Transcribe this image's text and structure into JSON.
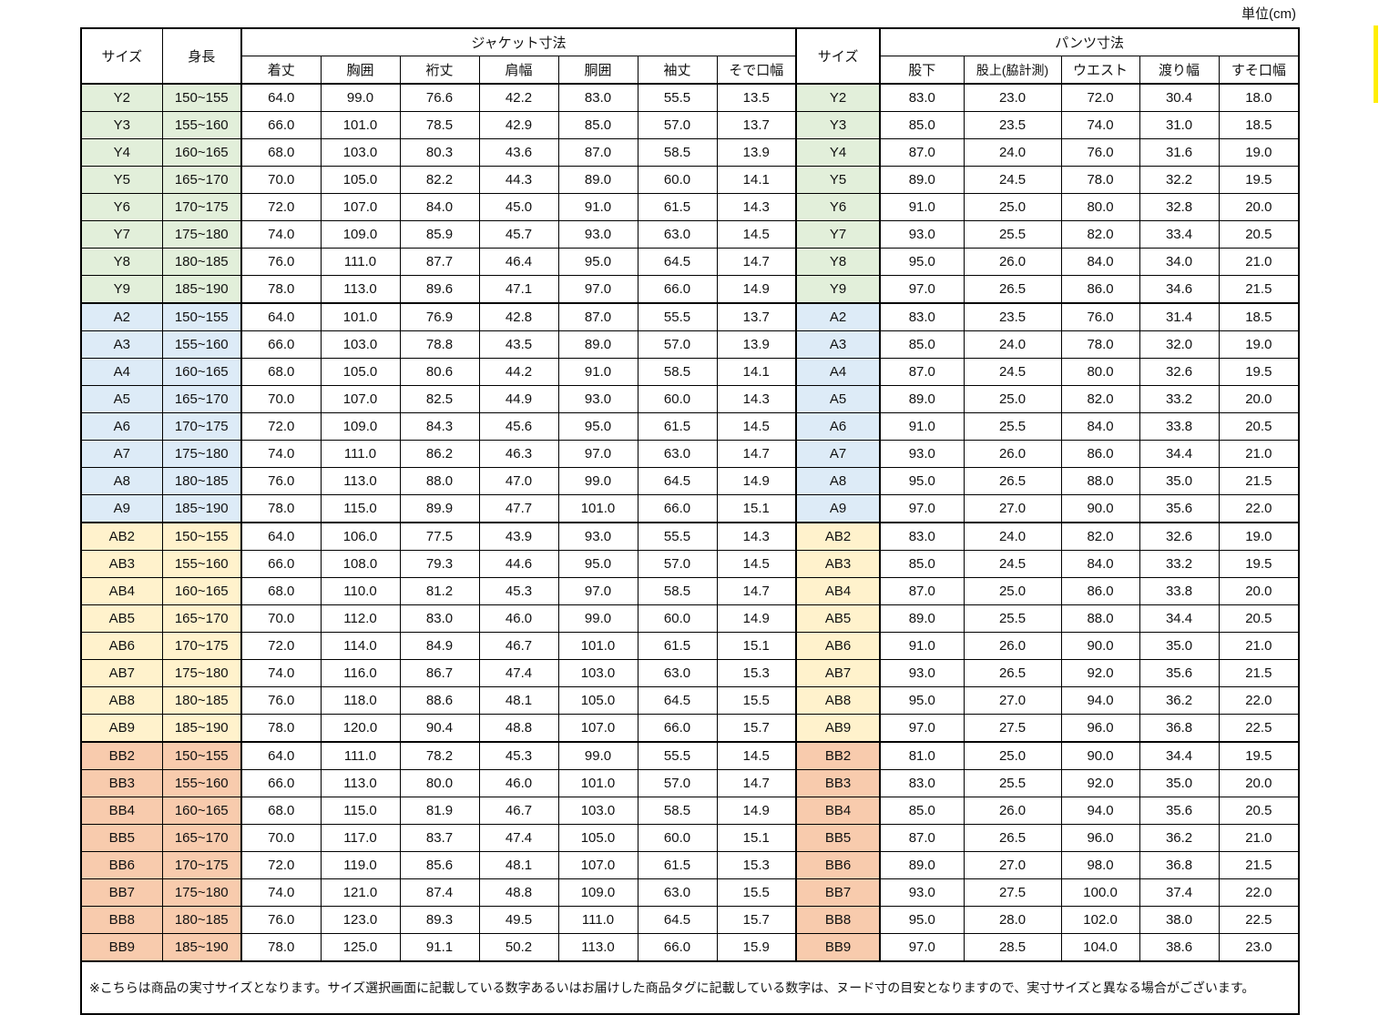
{
  "unit_label": "単位(cm)",
  "decorations": {
    "right_edge_strip_color": "#ffee00"
  },
  "table": {
    "headers": {
      "size": "サイズ",
      "height": "身長",
      "jacket_group": "ジャケット寸法",
      "jacket_columns": [
        "着丈",
        "胸囲",
        "裄丈",
        "肩幅",
        "胴囲",
        "袖丈",
        "そで口幅"
      ],
      "pants_group": "パンツ寸法",
      "pants_columns": [
        "股下",
        "股上(脇計測)",
        "ウエスト",
        "渡り幅",
        "すそ口幅"
      ]
    },
    "groups": [
      {
        "name": "Y",
        "row_color": "#e2efda",
        "rows": [
          {
            "size": "Y2",
            "height": "150~155",
            "jacket": [
              "64.0",
              "99.0",
              "76.6",
              "42.2",
              "83.0",
              "55.5",
              "13.5"
            ],
            "pants": [
              "83.0",
              "23.0",
              "72.0",
              "30.4",
              "18.0"
            ]
          },
          {
            "size": "Y3",
            "height": "155~160",
            "jacket": [
              "66.0",
              "101.0",
              "78.5",
              "42.9",
              "85.0",
              "57.0",
              "13.7"
            ],
            "pants": [
              "85.0",
              "23.5",
              "74.0",
              "31.0",
              "18.5"
            ]
          },
          {
            "size": "Y4",
            "height": "160~165",
            "jacket": [
              "68.0",
              "103.0",
              "80.3",
              "43.6",
              "87.0",
              "58.5",
              "13.9"
            ],
            "pants": [
              "87.0",
              "24.0",
              "76.0",
              "31.6",
              "19.0"
            ]
          },
          {
            "size": "Y5",
            "height": "165~170",
            "jacket": [
              "70.0",
              "105.0",
              "82.2",
              "44.3",
              "89.0",
              "60.0",
              "14.1"
            ],
            "pants": [
              "89.0",
              "24.5",
              "78.0",
              "32.2",
              "19.5"
            ]
          },
          {
            "size": "Y6",
            "height": "170~175",
            "jacket": [
              "72.0",
              "107.0",
              "84.0",
              "45.0",
              "91.0",
              "61.5",
              "14.3"
            ],
            "pants": [
              "91.0",
              "25.0",
              "80.0",
              "32.8",
              "20.0"
            ]
          },
          {
            "size": "Y7",
            "height": "175~180",
            "jacket": [
              "74.0",
              "109.0",
              "85.9",
              "45.7",
              "93.0",
              "63.0",
              "14.5"
            ],
            "pants": [
              "93.0",
              "25.5",
              "82.0",
              "33.4",
              "20.5"
            ]
          },
          {
            "size": "Y8",
            "height": "180~185",
            "jacket": [
              "76.0",
              "111.0",
              "87.7",
              "46.4",
              "95.0",
              "64.5",
              "14.7"
            ],
            "pants": [
              "95.0",
              "26.0",
              "84.0",
              "34.0",
              "21.0"
            ]
          },
          {
            "size": "Y9",
            "height": "185~190",
            "jacket": [
              "78.0",
              "113.0",
              "89.6",
              "47.1",
              "97.0",
              "66.0",
              "14.9"
            ],
            "pants": [
              "97.0",
              "26.5",
              "86.0",
              "34.6",
              "21.5"
            ]
          }
        ]
      },
      {
        "name": "A",
        "row_color": "#ddebf7",
        "rows": [
          {
            "size": "A2",
            "height": "150~155",
            "jacket": [
              "64.0",
              "101.0",
              "76.9",
              "42.8",
              "87.0",
              "55.5",
              "13.7"
            ],
            "pants": [
              "83.0",
              "23.5",
              "76.0",
              "31.4",
              "18.5"
            ]
          },
          {
            "size": "A3",
            "height": "155~160",
            "jacket": [
              "66.0",
              "103.0",
              "78.8",
              "43.5",
              "89.0",
              "57.0",
              "13.9"
            ],
            "pants": [
              "85.0",
              "24.0",
              "78.0",
              "32.0",
              "19.0"
            ]
          },
          {
            "size": "A4",
            "height": "160~165",
            "jacket": [
              "68.0",
              "105.0",
              "80.6",
              "44.2",
              "91.0",
              "58.5",
              "14.1"
            ],
            "pants": [
              "87.0",
              "24.5",
              "80.0",
              "32.6",
              "19.5"
            ]
          },
          {
            "size": "A5",
            "height": "165~170",
            "jacket": [
              "70.0",
              "107.0",
              "82.5",
              "44.9",
              "93.0",
              "60.0",
              "14.3"
            ],
            "pants": [
              "89.0",
              "25.0",
              "82.0",
              "33.2",
              "20.0"
            ]
          },
          {
            "size": "A6",
            "height": "170~175",
            "jacket": [
              "72.0",
              "109.0",
              "84.3",
              "45.6",
              "95.0",
              "61.5",
              "14.5"
            ],
            "pants": [
              "91.0",
              "25.5",
              "84.0",
              "33.8",
              "20.5"
            ]
          },
          {
            "size": "A7",
            "height": "175~180",
            "jacket": [
              "74.0",
              "111.0",
              "86.2",
              "46.3",
              "97.0",
              "63.0",
              "14.7"
            ],
            "pants": [
              "93.0",
              "26.0",
              "86.0",
              "34.4",
              "21.0"
            ]
          },
          {
            "size": "A8",
            "height": "180~185",
            "jacket": [
              "76.0",
              "113.0",
              "88.0",
              "47.0",
              "99.0",
              "64.5",
              "14.9"
            ],
            "pants": [
              "95.0",
              "26.5",
              "88.0",
              "35.0",
              "21.5"
            ]
          },
          {
            "size": "A9",
            "height": "185~190",
            "jacket": [
              "78.0",
              "115.0",
              "89.9",
              "47.7",
              "101.0",
              "66.0",
              "15.1"
            ],
            "pants": [
              "97.0",
              "27.0",
              "90.0",
              "35.6",
              "22.0"
            ]
          }
        ]
      },
      {
        "name": "AB",
        "row_color": "#fff2cc",
        "rows": [
          {
            "size": "AB2",
            "height": "150~155",
            "jacket": [
              "64.0",
              "106.0",
              "77.5",
              "43.9",
              "93.0",
              "55.5",
              "14.3"
            ],
            "pants": [
              "83.0",
              "24.0",
              "82.0",
              "32.6",
              "19.0"
            ]
          },
          {
            "size": "AB3",
            "height": "155~160",
            "jacket": [
              "66.0",
              "108.0",
              "79.3",
              "44.6",
              "95.0",
              "57.0",
              "14.5"
            ],
            "pants": [
              "85.0",
              "24.5",
              "84.0",
              "33.2",
              "19.5"
            ]
          },
          {
            "size": "AB4",
            "height": "160~165",
            "jacket": [
              "68.0",
              "110.0",
              "81.2",
              "45.3",
              "97.0",
              "58.5",
              "14.7"
            ],
            "pants": [
              "87.0",
              "25.0",
              "86.0",
              "33.8",
              "20.0"
            ]
          },
          {
            "size": "AB5",
            "height": "165~170",
            "jacket": [
              "70.0",
              "112.0",
              "83.0",
              "46.0",
              "99.0",
              "60.0",
              "14.9"
            ],
            "pants": [
              "89.0",
              "25.5",
              "88.0",
              "34.4",
              "20.5"
            ]
          },
          {
            "size": "AB6",
            "height": "170~175",
            "jacket": [
              "72.0",
              "114.0",
              "84.9",
              "46.7",
              "101.0",
              "61.5",
              "15.1"
            ],
            "pants": [
              "91.0",
              "26.0",
              "90.0",
              "35.0",
              "21.0"
            ]
          },
          {
            "size": "AB7",
            "height": "175~180",
            "jacket": [
              "74.0",
              "116.0",
              "86.7",
              "47.4",
              "103.0",
              "63.0",
              "15.3"
            ],
            "pants": [
              "93.0",
              "26.5",
              "92.0",
              "35.6",
              "21.5"
            ]
          },
          {
            "size": "AB8",
            "height": "180~185",
            "jacket": [
              "76.0",
              "118.0",
              "88.6",
              "48.1",
              "105.0",
              "64.5",
              "15.5"
            ],
            "pants": [
              "95.0",
              "27.0",
              "94.0",
              "36.2",
              "22.0"
            ]
          },
          {
            "size": "AB9",
            "height": "185~190",
            "jacket": [
              "78.0",
              "120.0",
              "90.4",
              "48.8",
              "107.0",
              "66.0",
              "15.7"
            ],
            "pants": [
              "97.0",
              "27.5",
              "96.0",
              "36.8",
              "22.5"
            ]
          }
        ]
      },
      {
        "name": "BB",
        "row_color": "#f8cbad",
        "rows": [
          {
            "size": "BB2",
            "height": "150~155",
            "jacket": [
              "64.0",
              "111.0",
              "78.2",
              "45.3",
              "99.0",
              "55.5",
              "14.5"
            ],
            "pants": [
              "81.0",
              "25.0",
              "90.0",
              "34.4",
              "19.5"
            ]
          },
          {
            "size": "BB3",
            "height": "155~160",
            "jacket": [
              "66.0",
              "113.0",
              "80.0",
              "46.0",
              "101.0",
              "57.0",
              "14.7"
            ],
            "pants": [
              "83.0",
              "25.5",
              "92.0",
              "35.0",
              "20.0"
            ]
          },
          {
            "size": "BB4",
            "height": "160~165",
            "jacket": [
              "68.0",
              "115.0",
              "81.9",
              "46.7",
              "103.0",
              "58.5",
              "14.9"
            ],
            "pants": [
              "85.0",
              "26.0",
              "94.0",
              "35.6",
              "20.5"
            ]
          },
          {
            "size": "BB5",
            "height": "165~170",
            "jacket": [
              "70.0",
              "117.0",
              "83.7",
              "47.4",
              "105.0",
              "60.0",
              "15.1"
            ],
            "pants": [
              "87.0",
              "26.5",
              "96.0",
              "36.2",
              "21.0"
            ]
          },
          {
            "size": "BB6",
            "height": "170~175",
            "jacket": [
              "72.0",
              "119.0",
              "85.6",
              "48.1",
              "107.0",
              "61.5",
              "15.3"
            ],
            "pants": [
              "89.0",
              "27.0",
              "98.0",
              "36.8",
              "21.5"
            ]
          },
          {
            "size": "BB7",
            "height": "175~180",
            "jacket": [
              "74.0",
              "121.0",
              "87.4",
              "48.8",
              "109.0",
              "63.0",
              "15.5"
            ],
            "pants": [
              "93.0",
              "27.5",
              "100.0",
              "37.4",
              "22.0"
            ]
          },
          {
            "size": "BB8",
            "height": "180~185",
            "jacket": [
              "76.0",
              "123.0",
              "89.3",
              "49.5",
              "111.0",
              "64.5",
              "15.7"
            ],
            "pants": [
              "95.0",
              "28.0",
              "102.0",
              "38.0",
              "22.5"
            ]
          },
          {
            "size": "BB9",
            "height": "185~190",
            "jacket": [
              "78.0",
              "125.0",
              "91.1",
              "50.2",
              "113.0",
              "66.0",
              "15.9"
            ],
            "pants": [
              "97.0",
              "28.5",
              "104.0",
              "38.6",
              "23.0"
            ]
          }
        ]
      }
    ]
  },
  "note": "※こちらは商品の実寸サイズとなります。サイズ選択画面に記載している数字あるいはお届けした商品タグに記載している数字は、ヌード寸の目安となりますので、実寸サイズと異なる場合がございます。"
}
